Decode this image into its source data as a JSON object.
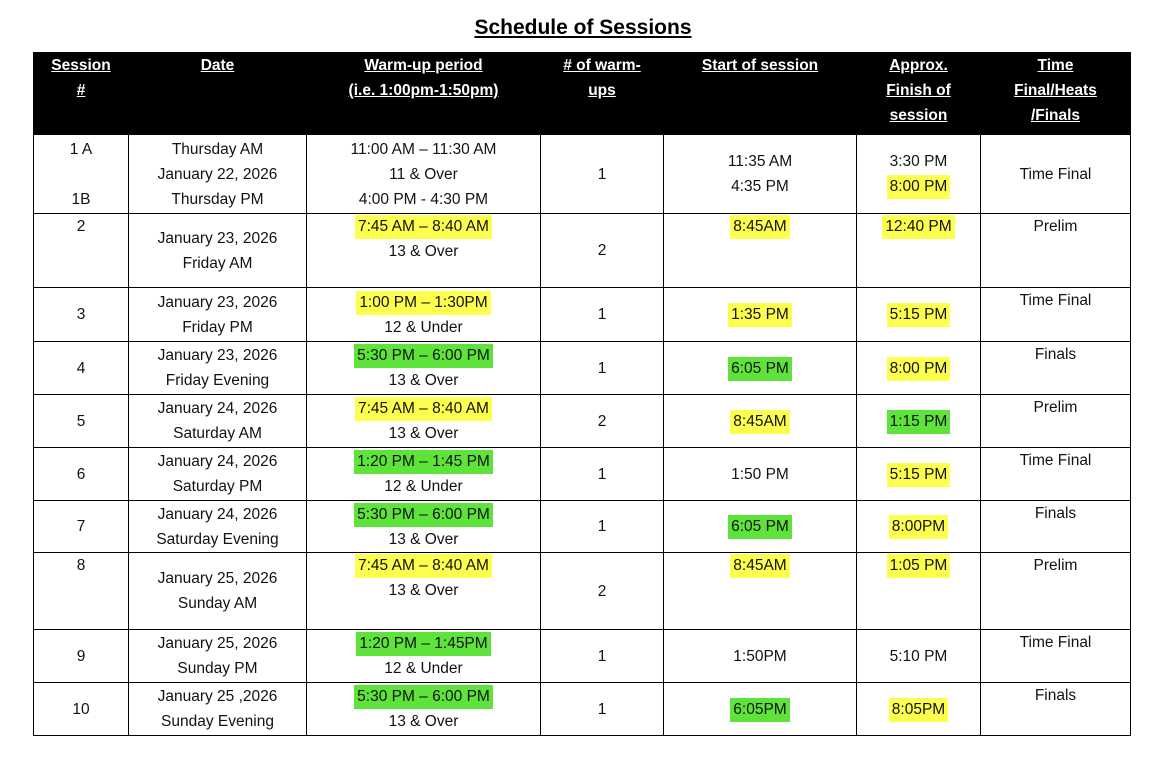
{
  "title": "Schedule of Sessions",
  "colors": {
    "header_bg": "#000000",
    "header_fg": "#ffffff",
    "highlight_yellow": "#fdff4f",
    "highlight_green": "#5de33a"
  },
  "table": {
    "headers": [
      {
        "id": "session-number",
        "lines": [
          "Session",
          "#"
        ]
      },
      {
        "id": "date",
        "lines": [
          "Date"
        ]
      },
      {
        "id": "warmup-period",
        "lines": [
          "Warm-up period",
          "(i.e. 1:00pm-1:50pm)"
        ]
      },
      {
        "id": "num-warmups",
        "lines": [
          "# of warm-",
          "ups"
        ]
      },
      {
        "id": "start-of-session",
        "lines": [
          "Start of session"
        ]
      },
      {
        "id": "approx-finish",
        "lines": [
          "Approx.",
          "Finish of",
          "session"
        ]
      },
      {
        "id": "time-final-heats-finals",
        "lines": [
          "Time",
          "Final/Heats",
          "/Finals"
        ]
      }
    ],
    "rows": [
      {
        "session": [
          {
            "text": "1 A"
          },
          {
            "text": ""
          },
          {
            "text": "1B"
          }
        ],
        "date": [
          {
            "text": "Thursday AM"
          },
          {
            "text": "January 22, 2026"
          },
          {
            "text": "Thursday PM"
          }
        ],
        "warmup": [
          {
            "text": "11:00 AM – 11:30 AM"
          },
          {
            "text": "11 & Over"
          },
          {
            "text": "4:00 PM - 4:30 PM"
          }
        ],
        "count": [
          {
            "text": "1"
          }
        ],
        "start": [
          {
            "text": "11:35 AM"
          },
          {
            "text": "4:35 PM"
          }
        ],
        "finish": [
          {
            "text": "3:30 PM"
          },
          {
            "text": "8:00 PM",
            "hl": "yellow"
          }
        ],
        "type": [
          {
            "text": "Time Final"
          }
        ]
      },
      {
        "session": [
          {
            "text": "2"
          }
        ],
        "date": [
          {
            "text": "January 23, 2026"
          },
          {
            "text": "Friday AM"
          }
        ],
        "warmup": [
          {
            "text": "7:45 AM – 8:40 AM",
            "hl": "yellow"
          },
          {
            "text": "13 & Over"
          }
        ],
        "count": [
          {
            "text": "2"
          }
        ],
        "start": [
          {
            "text": "8:45AM",
            "hl": "yellow"
          }
        ],
        "finish": [
          {
            "text": "12:40 PM",
            "hl": "yellow"
          }
        ],
        "type": [
          {
            "text": "Prelim"
          }
        ]
      },
      {
        "session": [
          {
            "text": "3"
          }
        ],
        "date": [
          {
            "text": "January 23, 2026"
          },
          {
            "text": "Friday PM"
          }
        ],
        "warmup": [
          {
            "text": "1:00 PM – 1:30PM",
            "hl": "yellow"
          },
          {
            "text": "12 & Under"
          }
        ],
        "count": [
          {
            "text": "1"
          }
        ],
        "start": [
          {
            "text": "1:35 PM",
            "hl": "yellow"
          }
        ],
        "finish": [
          {
            "text": "5:15 PM",
            "hl": "yellow"
          }
        ],
        "type": [
          {
            "text": "Time Final"
          }
        ]
      },
      {
        "session": [
          {
            "text": "4"
          }
        ],
        "date": [
          {
            "text": "January 23, 2026"
          },
          {
            "text": "Friday Evening"
          }
        ],
        "warmup": [
          {
            "text": "5:30 PM – 6:00 PM",
            "hl": "green"
          },
          {
            "text": "13 & Over"
          }
        ],
        "count": [
          {
            "text": "1"
          }
        ],
        "start": [
          {
            "text": "6:05 PM",
            "hl": "green"
          }
        ],
        "finish": [
          {
            "text": "8:00 PM",
            "hl": "yellow"
          }
        ],
        "type": [
          {
            "text": "Finals"
          }
        ]
      },
      {
        "session": [
          {
            "text": "5"
          }
        ],
        "date": [
          {
            "text": "January 24, 2026"
          },
          {
            "text": "Saturday AM"
          }
        ],
        "warmup": [
          {
            "text": "7:45 AM – 8:40 AM",
            "hl": "yellow"
          },
          {
            "text": "13 & Over"
          }
        ],
        "count": [
          {
            "text": "2"
          }
        ],
        "start": [
          {
            "text": "8:45AM",
            "hl": "yellow"
          }
        ],
        "finish": [
          {
            "text": "1:15 PM",
            "hl": "green"
          }
        ],
        "type": [
          {
            "text": "Prelim"
          }
        ]
      },
      {
        "session": [
          {
            "text": "6"
          }
        ],
        "date": [
          {
            "text": "January 24, 2026"
          },
          {
            "text": "Saturday PM"
          }
        ],
        "warmup": [
          {
            "text": "1:20 PM – 1:45 PM",
            "hl": "green"
          },
          {
            "text": "12 & Under"
          }
        ],
        "count": [
          {
            "text": "1"
          }
        ],
        "start": [
          {
            "text": "1:50 PM"
          }
        ],
        "finish": [
          {
            "text": "5:15 PM",
            "hl": "yellow"
          }
        ],
        "type": [
          {
            "text": "Time Final"
          }
        ]
      },
      {
        "session": [
          {
            "text": "7"
          }
        ],
        "date": [
          {
            "text": "January 24, 2026"
          },
          {
            "text": "Saturday Evening"
          }
        ],
        "warmup": [
          {
            "text": "5:30 PM – 6:00 PM",
            "hl": "green"
          },
          {
            "text": "13 & Over"
          }
        ],
        "count": [
          {
            "text": "1"
          }
        ],
        "start": [
          {
            "text": "6:05 PM",
            "hl": "green"
          }
        ],
        "finish": [
          {
            "text": "8:00PM",
            "hl": "yellow"
          }
        ],
        "type": [
          {
            "text": "Finals"
          }
        ]
      },
      {
        "session": [
          {
            "text": "8"
          }
        ],
        "date": [
          {
            "text": "January 25, 2026"
          },
          {
            "text": "Sunday AM"
          }
        ],
        "warmup": [
          {
            "text": "7:45 AM – 8:40 AM",
            "hl": "yellow"
          },
          {
            "text": "13 & Over"
          }
        ],
        "count": [
          {
            "text": "2"
          }
        ],
        "start": [
          {
            "text": "8:45AM",
            "hl": "yellow"
          }
        ],
        "finish": [
          {
            "text": "1:05 PM",
            "hl": "yellow"
          }
        ],
        "type": [
          {
            "text": "Prelim"
          }
        ]
      },
      {
        "session": [
          {
            "text": "9"
          }
        ],
        "date": [
          {
            "text": "January 25, 2026"
          },
          {
            "text": "Sunday PM"
          }
        ],
        "warmup": [
          {
            "text": "1:20 PM – 1:45PM",
            "hl": "green"
          },
          {
            "text": "12 & Under"
          }
        ],
        "count": [
          {
            "text": "1"
          }
        ],
        "start": [
          {
            "text": "1:50PM"
          }
        ],
        "finish": [
          {
            "text": "5:10 PM"
          }
        ],
        "type": [
          {
            "text": "Time Final"
          }
        ]
      },
      {
        "session": [
          {
            "text": "10"
          }
        ],
        "date": [
          {
            "text": "January 25 ,2026"
          },
          {
            "text": "Sunday Evening"
          }
        ],
        "warmup": [
          {
            "text": "5:30 PM – 6:00 PM",
            "hl": "green"
          },
          {
            "text": "13 & Over"
          }
        ],
        "count": [
          {
            "text": "1"
          }
        ],
        "start": [
          {
            "text": "6:05PM",
            "hl": "green"
          }
        ],
        "finish": [
          {
            "text": "8:05PM",
            "hl": "yellow"
          }
        ],
        "type": [
          {
            "text": "Finals"
          }
        ]
      }
    ]
  }
}
